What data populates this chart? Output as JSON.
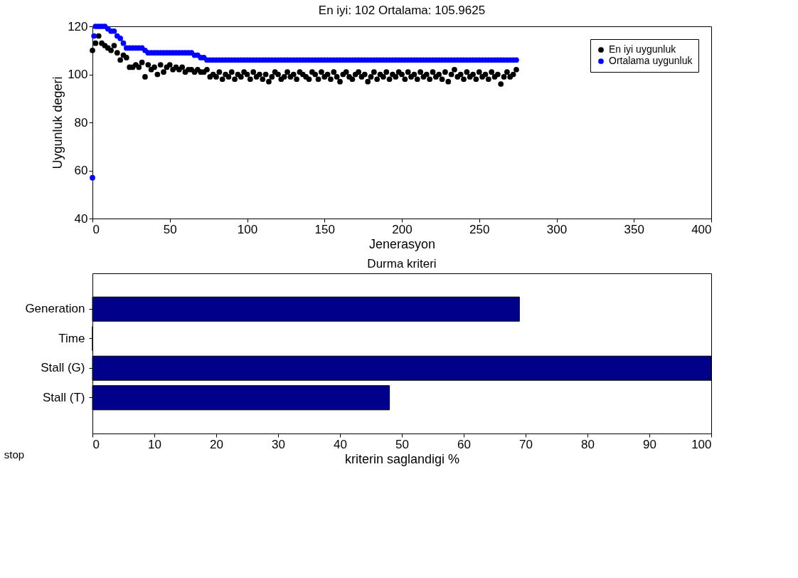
{
  "chart_data": [
    {
      "type": "scatter",
      "title": "En iyi: 102 Ortalama: 105.9625",
      "xlabel": "Jenerasyon",
      "ylabel": "Uygunluk degeri",
      "xlim": [
        0,
        400
      ],
      "xticks": [
        0,
        50,
        100,
        150,
        200,
        250,
        300,
        350,
        400
      ],
      "ylim": [
        40,
        120
      ],
      "yticks": [
        40,
        60,
        80,
        100,
        120
      ],
      "marker": "circle",
      "grid": false,
      "legend": "top right",
      "series": [
        {
          "name": "En iyi uygunluk",
          "color": "#000000",
          "x": [
            0,
            2,
            4,
            6,
            8,
            10,
            12,
            14,
            16,
            18,
            20,
            22,
            24,
            26,
            28,
            30,
            32,
            34,
            36,
            38,
            40,
            42,
            44,
            46,
            48,
            50,
            52,
            54,
            56,
            58,
            60,
            62,
            64,
            66,
            68,
            70,
            72,
            74,
            76,
            78,
            80,
            82,
            84,
            86,
            88,
            90,
            92,
            94,
            96,
            98,
            100,
            102,
            104,
            106,
            108,
            110,
            112,
            114,
            116,
            118,
            120,
            122,
            124,
            126,
            128,
            130,
            132,
            134,
            136,
            138,
            140,
            142,
            144,
            146,
            148,
            150,
            152,
            154,
            156,
            158,
            160,
            162,
            164,
            166,
            168,
            170,
            172,
            174,
            176,
            178,
            180,
            182,
            184,
            186,
            188,
            190,
            192,
            194,
            196,
            198,
            200,
            202,
            204,
            206,
            208,
            210,
            212,
            214,
            216,
            218,
            220,
            222,
            224,
            226,
            228,
            230,
            232,
            234,
            236,
            238,
            240,
            242,
            244,
            246,
            248,
            250,
            252,
            254,
            256,
            258,
            260,
            262,
            264,
            266,
            268,
            270,
            272,
            274
          ],
          "values": [
            110,
            113,
            116,
            113,
            112,
            111,
            110,
            112,
            109,
            106,
            108,
            107,
            103,
            103,
            104,
            103,
            105,
            99,
            104,
            102,
            103,
            100,
            104,
            101,
            103,
            104,
            102,
            103,
            102,
            103,
            101,
            102,
            102,
            101,
            102,
            101,
            101,
            102,
            99,
            100,
            99,
            101,
            98,
            100,
            99,
            101,
            98,
            100,
            99,
            101,
            100,
            98,
            101,
            99,
            100,
            98,
            100,
            97,
            99,
            101,
            100,
            98,
            99,
            101,
            99,
            100,
            98,
            101,
            100,
            99,
            98,
            101,
            100,
            98,
            101,
            99,
            100,
            98,
            101,
            99,
            97,
            100,
            101,
            99,
            98,
            100,
            101,
            99,
            100,
            97,
            99,
            101,
            98,
            100,
            99,
            101,
            98,
            100,
            99,
            101,
            100,
            98,
            101,
            99,
            100,
            98,
            101,
            99,
            100,
            98,
            101,
            99,
            100,
            98,
            101,
            97,
            100,
            102,
            99,
            100,
            98,
            101,
            99,
            100,
            98,
            101,
            99,
            100,
            98,
            101,
            99,
            100,
            96,
            99,
            101,
            99,
            100,
            102
          ]
        },
        {
          "name": "Ortalama uygunluk",
          "color": "#0000ff",
          "x": [
            0,
            1,
            2,
            4,
            6,
            8,
            10,
            12,
            14,
            16,
            18,
            20,
            22,
            24,
            26,
            28,
            30,
            32,
            34,
            36,
            38,
            40,
            42,
            44,
            46,
            48,
            50,
            52,
            54,
            56,
            58,
            60,
            62,
            64,
            66,
            68,
            70,
            72,
            74,
            76,
            78,
            80,
            82,
            84,
            86,
            88,
            90,
            92,
            94,
            96,
            98,
            100,
            102,
            104,
            106,
            108,
            110,
            112,
            114,
            116,
            118,
            120,
            122,
            124,
            126,
            128,
            130,
            132,
            134,
            136,
            138,
            140,
            142,
            144,
            146,
            148,
            150,
            152,
            154,
            156,
            158,
            160,
            162,
            164,
            166,
            168,
            170,
            172,
            174,
            176,
            178,
            180,
            182,
            184,
            186,
            188,
            190,
            192,
            194,
            196,
            198,
            200,
            202,
            204,
            206,
            208,
            210,
            212,
            214,
            216,
            218,
            220,
            222,
            224,
            226,
            228,
            230,
            232,
            234,
            236,
            238,
            240,
            242,
            244,
            246,
            248,
            250,
            252,
            254,
            256,
            258,
            260,
            262,
            264,
            266,
            268,
            270,
            272,
            274
          ],
          "values": [
            57,
            116,
            120,
            120,
            120,
            120,
            119,
            118,
            118,
            116,
            115,
            113,
            111,
            111,
            111,
            111,
            111,
            111,
            110,
            109,
            109,
            109,
            109,
            109,
            109,
            109,
            109,
            109,
            109,
            109,
            109,
            109,
            109,
            109,
            108,
            108,
            107,
            107,
            106,
            106,
            106,
            106,
            106,
            106,
            106,
            106,
            106,
            106,
            106,
            106,
            106,
            106,
            106,
            106,
            106,
            106,
            106,
            106,
            106,
            106,
            106,
            106,
            106,
            106,
            106,
            106,
            106,
            106,
            106,
            106,
            106,
            106,
            106,
            106,
            106,
            106,
            106,
            106,
            106,
            106,
            106,
            106,
            106,
            106,
            106,
            106,
            106,
            106,
            106,
            106,
            106,
            106,
            106,
            106,
            106,
            106,
            106,
            106,
            106,
            106,
            106,
            106,
            106,
            106,
            106,
            106,
            106,
            106,
            106,
            106,
            106,
            106,
            106,
            106,
            106,
            106,
            106,
            106,
            106,
            106,
            106,
            106,
            106,
            106,
            106,
            106,
            106,
            106,
            106,
            106,
            106,
            106,
            106,
            106,
            106,
            106,
            106,
            106,
            106
          ]
        }
      ]
    },
    {
      "type": "bar",
      "orientation": "horizontal",
      "title": "Durma kriteri",
      "xlabel": "kriterin saglandigi %",
      "categories": [
        "Generation",
        "Time",
        "Stall (G)",
        "Stall (T)"
      ],
      "values": [
        69,
        0,
        100,
        48
      ],
      "color": "#00008b",
      "xlim": [
        0,
        100
      ],
      "xticks": [
        0,
        10,
        20,
        30,
        40,
        50,
        60,
        70,
        80,
        90,
        100
      ],
      "grid": false,
      "annotations": [
        "stop"
      ]
    }
  ]
}
